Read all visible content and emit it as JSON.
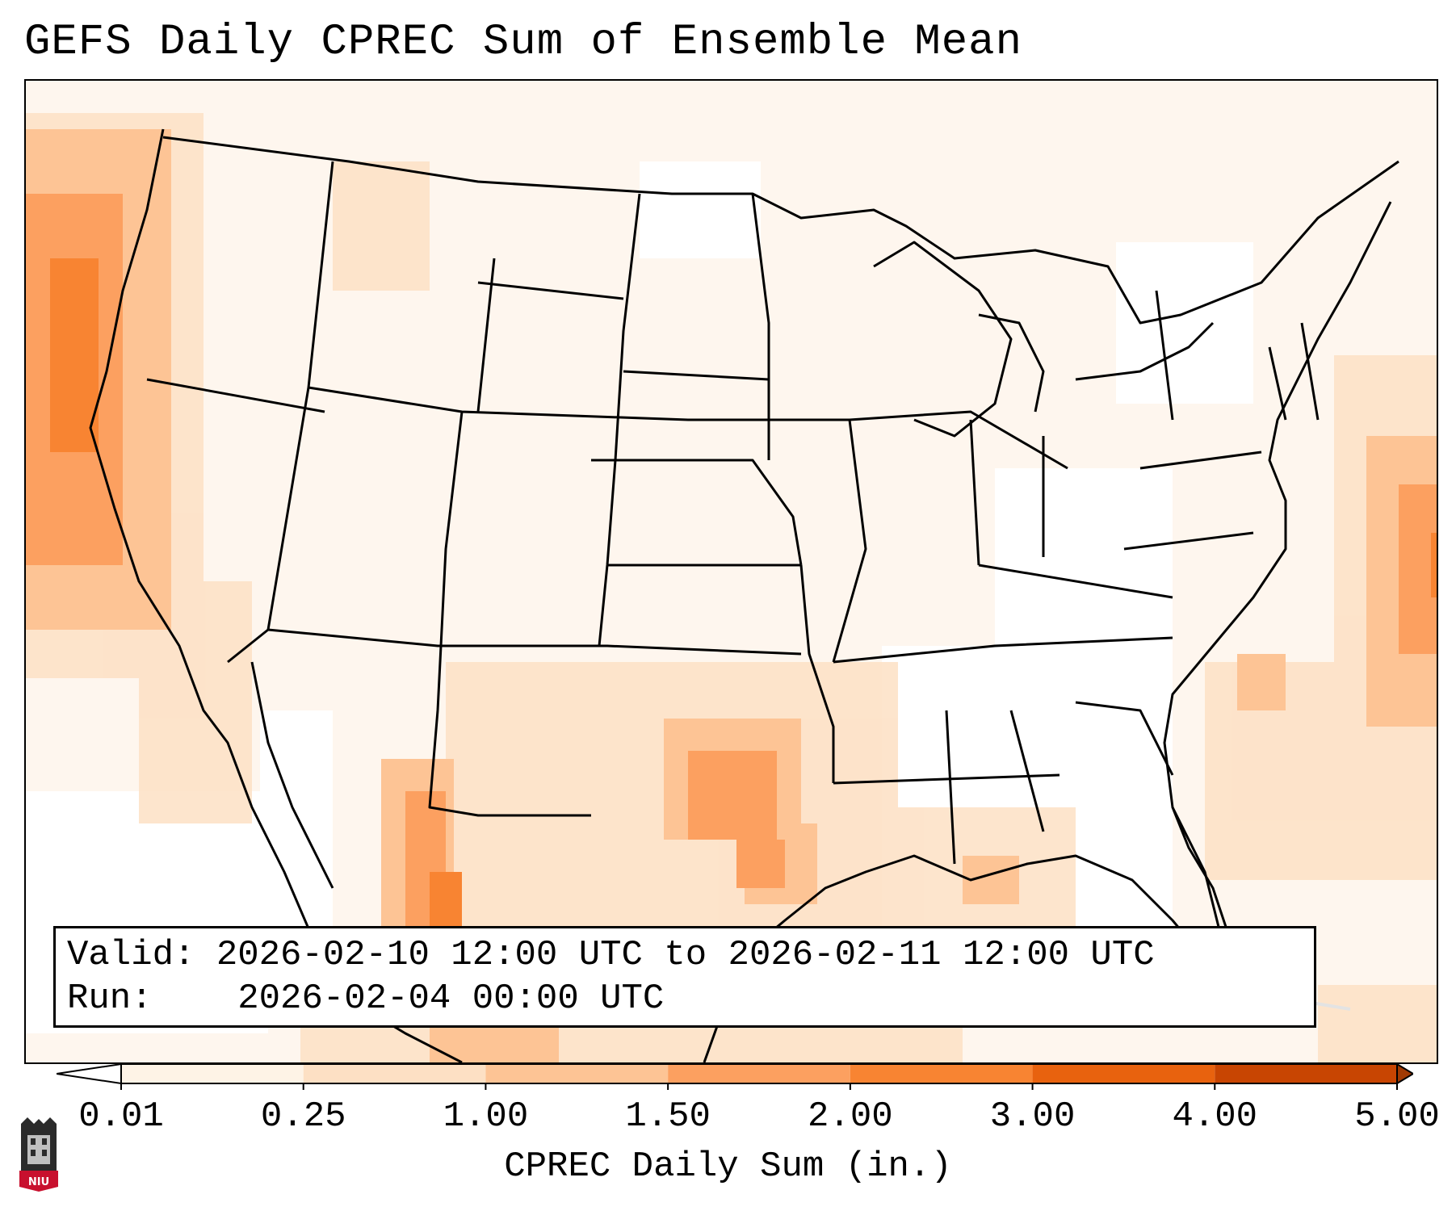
{
  "title": "GEFS Daily CPREC Sum of Ensemble Mean",
  "info": {
    "valid_label": "Valid:",
    "valid_value": "2026-02-10 12:00 UTC to 2026-02-11 12:00 UTC",
    "run_label": "Run:",
    "run_value": "2026-02-04 00:00 UTC"
  },
  "colorbar": {
    "label": "CPREC Daily Sum (in.)",
    "ticks": [
      "0.01",
      "0.25",
      "1.00",
      "1.50",
      "2.00",
      "3.00",
      "4.00",
      "5.00"
    ],
    "colors": [
      "#fef3e6",
      "#fde0c4",
      "#fdc495",
      "#fca060",
      "#f88432",
      "#e8620e",
      "#c84502"
    ],
    "under_color": "#ffffff",
    "over_color": "#a13a03"
  },
  "logo": {
    "text": "NIU",
    "color": "#c8102e"
  },
  "map": {
    "precip_areas": [
      {
        "region": "Pacific Northwest offshore",
        "level": "1.50-2.00"
      },
      {
        "region": "Central Texas",
        "level": "1.50-2.00"
      },
      {
        "region": "Western Mexico",
        "level": "2.00-3.00"
      },
      {
        "region": "Atlantic offshore (Mid-Atlantic)",
        "level": "1.50-2.00"
      }
    ]
  }
}
